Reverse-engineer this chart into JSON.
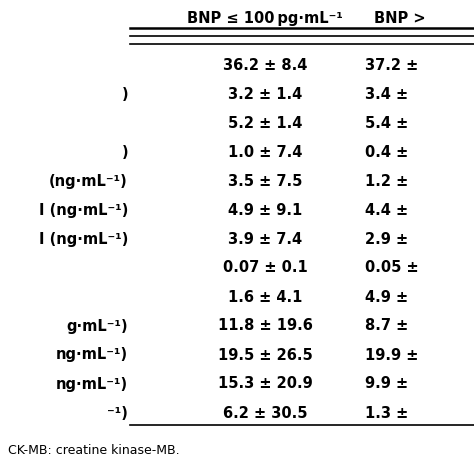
{
  "col1_header": "BNP ≤ 100 pg·mL⁻¹",
  "col2_header": "BNP >",
  "rows": [
    {
      "label": "",
      "col1": "36.2 ± 8.4",
      "col2": "37.2 ±"
    },
    {
      "label": ")",
      "col1": "3.2 ± 1.4",
      "col2": "3.4 ±"
    },
    {
      "label": "",
      "col1": "5.2 ± 1.4",
      "col2": "5.4 ±"
    },
    {
      "label": ")",
      "col1": "1.0 ± 7.4",
      "col2": "0.4 ±"
    },
    {
      "label": "(ng·mL⁻¹)",
      "col1": "3.5 ± 7.5",
      "col2": "1.2 ±"
    },
    {
      "label": "I (ng·mL⁻¹)",
      "col1": "4.9 ± 9.1",
      "col2": "4.4 ±"
    },
    {
      "label": "I (ng·mL⁻¹)",
      "col1": "3.9 ± 7.4",
      "col2": "2.9 ±"
    },
    {
      "label": "",
      "col1": "0.07 ± 0.1",
      "col2": "0.05 ±"
    },
    {
      "label": "",
      "col1": "1.6 ± 4.1",
      "col2": "4.9 ±"
    },
    {
      "label": "g·mL⁻¹)",
      "col1": "11.8 ± 19.6",
      "col2": "8.7 ±"
    },
    {
      "label": "ng·mL⁻¹)",
      "col1": "19.5 ± 26.5",
      "col2": "19.9 ±"
    },
    {
      "label": "ng·mL⁻¹)",
      "col1": "15.3 ± 20.9",
      "col2": "9.9 ±"
    },
    {
      "label": "⁻¹)",
      "col1": "6.2 ± 30.5",
      "col2": "1.3 ±"
    }
  ],
  "footnote": "CK-MB: creatine kinase-MB.",
  "bg_color": "#ffffff",
  "text_color": "#000000",
  "font_size": 10.5,
  "header_font_size": 10.5,
  "footnote_font_size": 9.0
}
